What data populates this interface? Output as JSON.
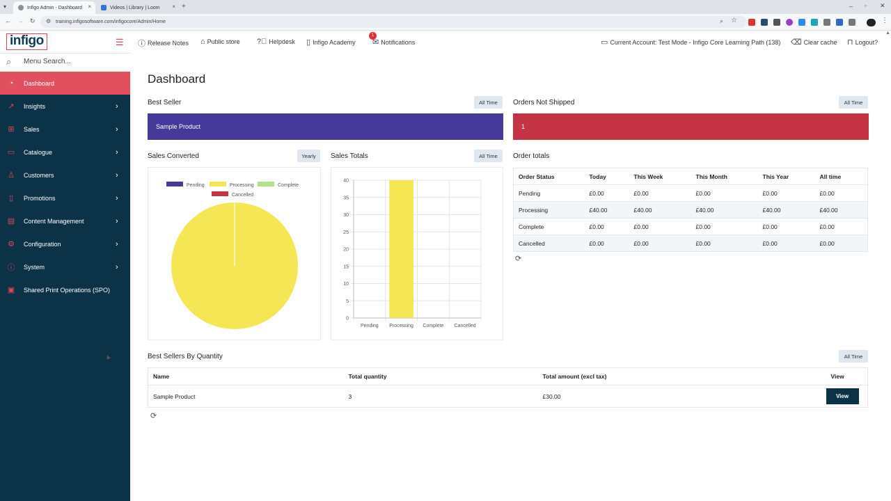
{
  "browser": {
    "tabs": [
      {
        "title": "Infigo Admin - Dashboard"
      },
      {
        "title": "Videos | Library | Loom"
      }
    ],
    "url": "training.infigosoftware.com/infigocore/Admin/Home"
  },
  "sidebar": {
    "logo": "infigo",
    "search_placeholder": "Menu Search...",
    "items": [
      {
        "label": "Dashboard",
        "icon": "dashboard-icon"
      },
      {
        "label": "Insights",
        "icon": "chart-line-icon"
      },
      {
        "label": "Sales",
        "icon": "cart-icon"
      },
      {
        "label": "Catalogue",
        "icon": "folder-icon"
      },
      {
        "label": "Customers",
        "icon": "user-icon"
      },
      {
        "label": "Promotions",
        "icon": "tag-icon"
      },
      {
        "label": "Content Management",
        "icon": "content-icon"
      },
      {
        "label": "Configuration",
        "icon": "gear-icon"
      },
      {
        "label": "System",
        "icon": "info-icon"
      },
      {
        "label": "Shared Print Operations (SPO)",
        "icon": "printer-icon"
      }
    ]
  },
  "topnav": {
    "release_notes": "Release Notes",
    "public_store": "Public store",
    "helpdesk": "Helpdesk",
    "academy": "Infigo Academy",
    "notifications": "Notifications",
    "notifications_count": "1",
    "account": "Current Account: Test Mode - Infigo Core Learning Path (138)",
    "clear_cache": "Clear cache",
    "logout": "Logout?"
  },
  "dashboard": {
    "title": "Dashboard",
    "best_seller": {
      "title": "Best Seller",
      "range": "All Time",
      "value": "Sample Product",
      "color": "#453a99"
    },
    "orders_not_shipped": {
      "title": "Orders Not Shipped",
      "range": "All Time",
      "value": "1",
      "color": "#c53445"
    },
    "sales_converted": {
      "title": "Sales Converted",
      "range": "Yearly"
    },
    "sales_totals": {
      "title": "Sales Totals",
      "range": "All Time"
    },
    "order_totals": {
      "title": "Order totals",
      "headers": [
        "Order Status",
        "Today",
        "This Week",
        "This Month",
        "This Year",
        "All time"
      ],
      "rows": [
        [
          "Pending",
          "£0.00",
          "£0.00",
          "£0.00",
          "£0.00",
          "£0.00"
        ],
        [
          "Processing",
          "£40.00",
          "£40.00",
          "£40.00",
          "£40.00",
          "£40.00"
        ],
        [
          "Complete",
          "£0.00",
          "£0.00",
          "£0.00",
          "£0.00",
          "£0.00"
        ],
        [
          "Cancelled",
          "£0.00",
          "£0.00",
          "£0.00",
          "£0.00",
          "£0.00"
        ]
      ]
    },
    "best_sellers_qty": {
      "title": "Best Sellers By Quantity",
      "range": "All Time",
      "headers": [
        "Name",
        "Total quantity",
        "Total amount (excl tax)",
        "View"
      ],
      "rows": [
        {
          "name": "Sample Product",
          "qty": "3",
          "amount": "£30.00",
          "action": "View"
        }
      ]
    }
  },
  "chart_data": [
    {
      "type": "pie",
      "title": "Sales Converted",
      "categories": [
        "Pending",
        "Processing",
        "Complete",
        "Cancelled"
      ],
      "values": [
        0,
        1,
        0,
        0
      ],
      "colors": [
        "#453a99",
        "#f5e655",
        "#b2e38a",
        "#c53445"
      ],
      "legend": "top"
    },
    {
      "type": "bar",
      "title": "Sales Totals",
      "categories": [
        "Pending",
        "Processing",
        "Complete",
        "Cancelled"
      ],
      "values": [
        0,
        40,
        0,
        0
      ],
      "color": "#f5e655",
      "ylim": [
        0,
        40
      ],
      "yticks": [
        0,
        5,
        10,
        15,
        20,
        25,
        30,
        35,
        40
      ],
      "grid": true
    }
  ]
}
